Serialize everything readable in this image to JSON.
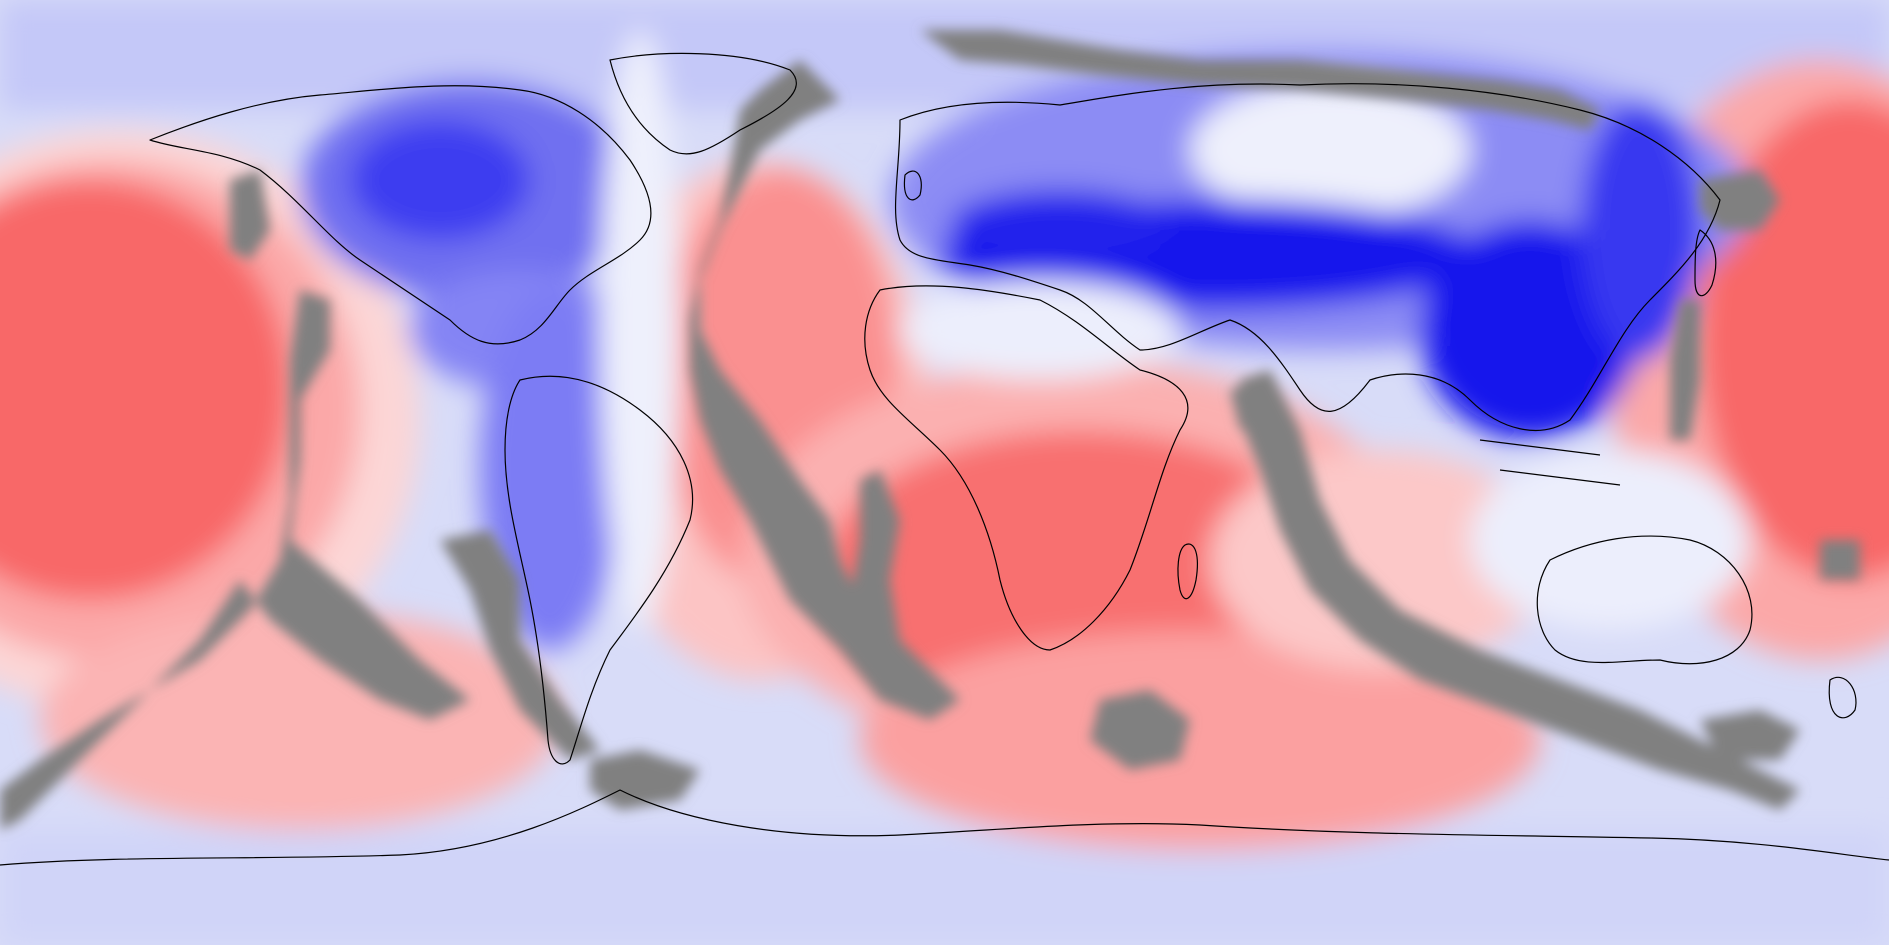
{
  "map": {
    "projection": "equirectangular",
    "field": "diverging",
    "colors": {
      "background": "#d8dcf8",
      "deep_blue": "#0000ee",
      "blue": "#3a3af0",
      "mid_blue": "#7c7cf4",
      "light_blue": "#b8bcf8",
      "pale_blue": "#e4e6fc",
      "white": "#fbf6f8",
      "pale_red": "#fcd6d6",
      "light_red": "#fba8a8",
      "red": "#fa8888",
      "deep_red": "#f86464",
      "missing": "#808080",
      "coastline": "#000000"
    },
    "layers": [
      "filled-contours",
      "missing-data-mask",
      "coastlines"
    ]
  }
}
